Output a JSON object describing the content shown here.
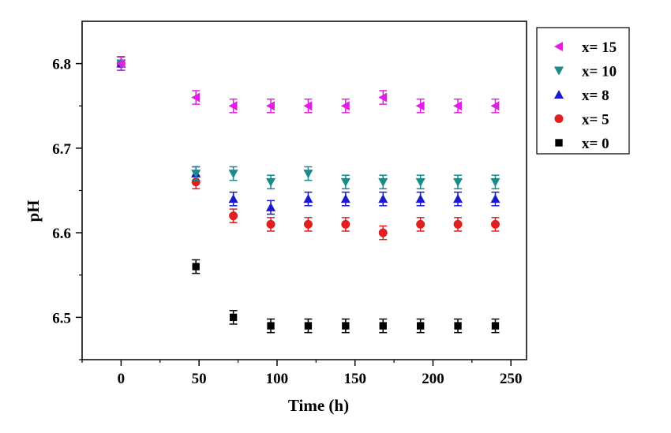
{
  "chart_data": {
    "type": "scatter",
    "xlabel": "Time (h)",
    "ylabel": "pH",
    "xlim": [
      -25,
      260
    ],
    "ylim": [
      6.45,
      6.85
    ],
    "xticks": [
      "0",
      "50",
      "100",
      "150",
      "200",
      "250"
    ],
    "yticks": [
      "6.5",
      "6.6",
      "6.7",
      "6.8"
    ],
    "grid": false,
    "legend_position": "top-right outside",
    "x": [
      0,
      48,
      72,
      96,
      120,
      144,
      168,
      192,
      216,
      240
    ],
    "series": [
      {
        "name": "x= 15",
        "marker": "triangle-left",
        "color": "#e020e0",
        "values": [
          6.8,
          6.76,
          6.75,
          6.75,
          6.75,
          6.75,
          6.76,
          6.75,
          6.75,
          6.75
        ]
      },
      {
        "name": "x= 10",
        "marker": "triangle-down",
        "color": "#1a8a8a",
        "values": [
          6.8,
          6.67,
          6.67,
          6.66,
          6.67,
          6.66,
          6.66,
          6.66,
          6.66,
          6.66
        ]
      },
      {
        "name": "x= 8",
        "marker": "triangle-up",
        "color": "#1a1acc",
        "values": [
          6.8,
          6.67,
          6.64,
          6.63,
          6.64,
          6.64,
          6.64,
          6.64,
          6.64,
          6.64
        ]
      },
      {
        "name": "x= 5",
        "marker": "circle",
        "color": "#e02020",
        "values": [
          6.8,
          6.66,
          6.62,
          6.61,
          6.61,
          6.61,
          6.6,
          6.61,
          6.61,
          6.61
        ]
      },
      {
        "name": "x= 0",
        "marker": "square",
        "color": "#000000",
        "values": [
          6.8,
          6.56,
          6.5,
          6.49,
          6.49,
          6.49,
          6.49,
          6.49,
          6.49,
          6.49
        ]
      }
    ],
    "error": 0.008
  }
}
